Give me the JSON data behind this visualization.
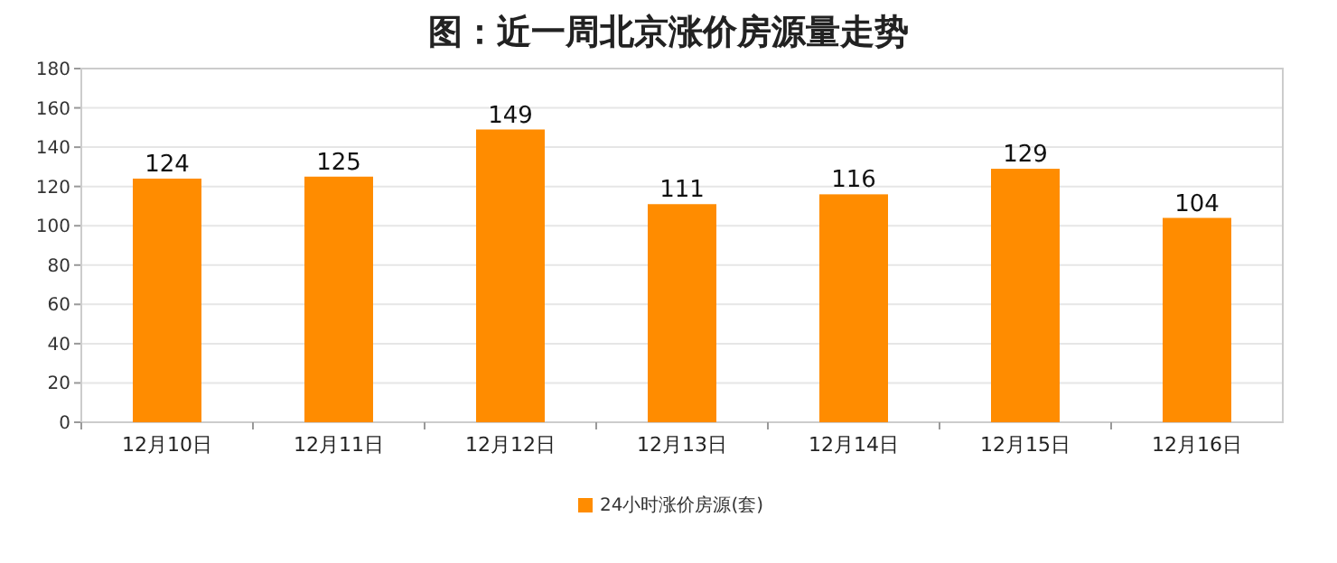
{
  "chart_data": {
    "type": "bar",
    "title": "图：近一周北京涨价房源量走势",
    "categories": [
      "12月10日",
      "12月11日",
      "12月12日",
      "12月13日",
      "12月14日",
      "12月15日",
      "12月16日"
    ],
    "series": [
      {
        "name": "24小时涨价房源(套)",
        "color": "#ff8c00",
        "values": [
          124,
          125,
          149,
          111,
          116,
          129,
          104
        ]
      }
    ],
    "ylim": [
      0,
      180
    ],
    "yticks": [
      0,
      20,
      40,
      60,
      80,
      100,
      120,
      140,
      160,
      180
    ],
    "grid": "y",
    "legend": "bottom",
    "data_labels": true
  }
}
